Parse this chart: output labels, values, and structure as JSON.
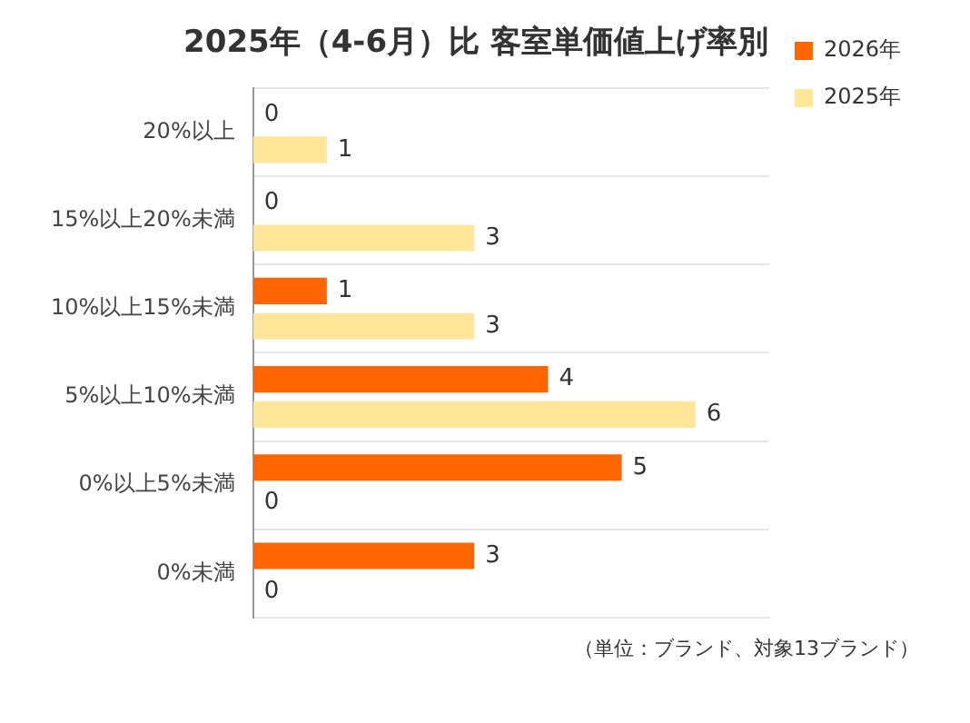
{
  "chart_data": {
    "type": "bar",
    "orientation": "horizontal",
    "title": "2025年（4-6月）比 客室単価値上げ率別",
    "categories": [
      "20%以上",
      "15%以上20%未満",
      "10%以上15%未満",
      "5%以上10%未満",
      "0%以上5%未満",
      "0%未満"
    ],
    "series": [
      {
        "name": "2026年",
        "color": "#ff6600",
        "values": [
          0,
          0,
          1,
          4,
          5,
          3
        ]
      },
      {
        "name": "2025年",
        "color": "#ffe699",
        "values": [
          1,
          3,
          3,
          6,
          0,
          0
        ]
      }
    ],
    "data_labels": true,
    "grid": "y",
    "legend": "top right",
    "annotations": [
      "（単位：ブランド、対象13ブランド）"
    ]
  }
}
